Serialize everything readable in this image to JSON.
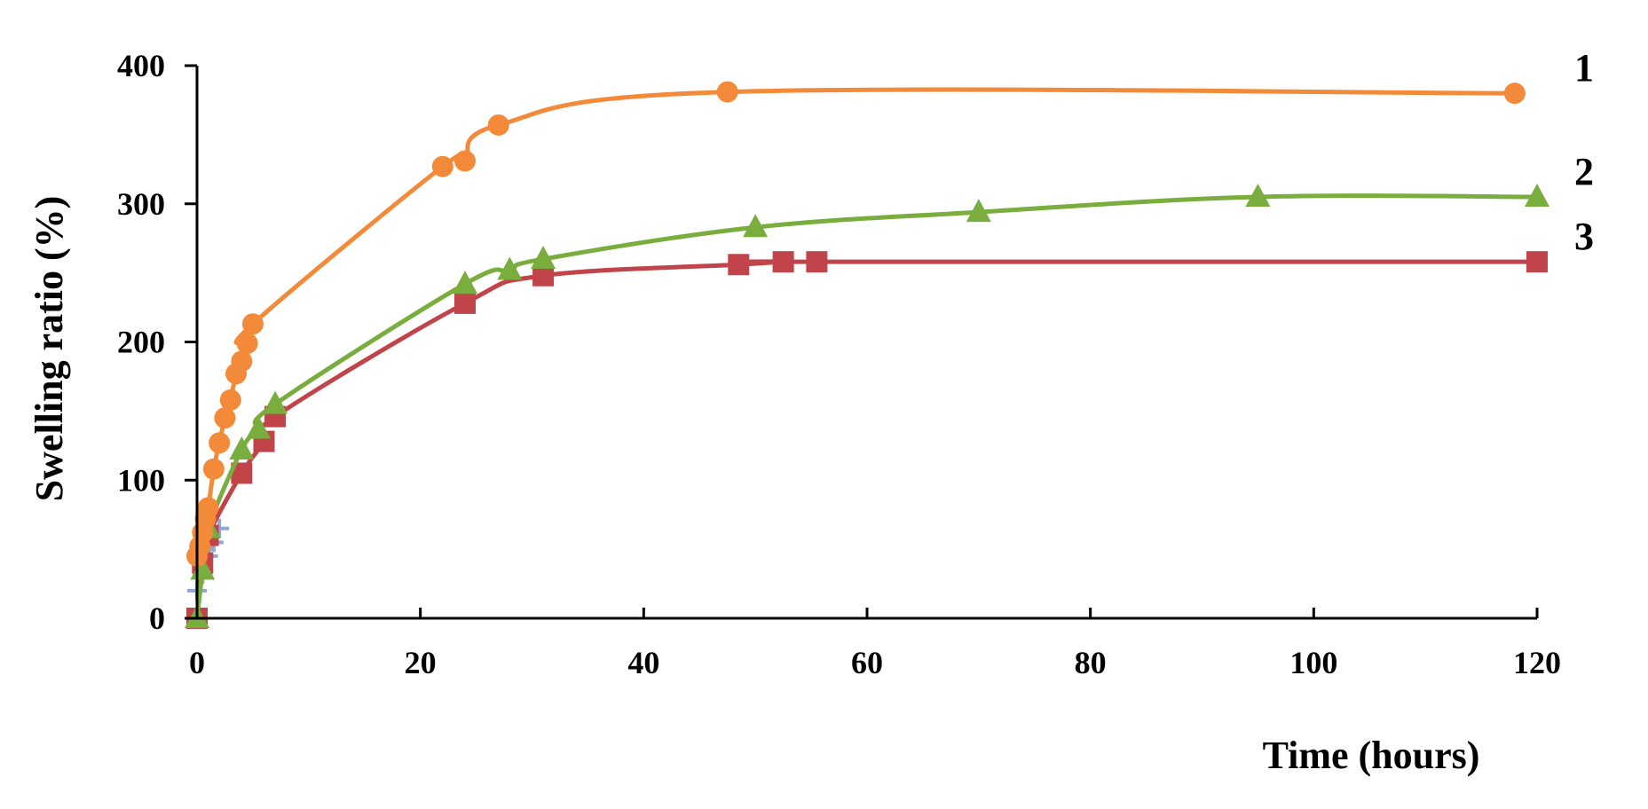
{
  "chart_data": {
    "type": "line",
    "title": "",
    "xlabel": "Time (hours)",
    "ylabel": "Swelling ratio (%)",
    "xlim": [
      0,
      120
    ],
    "ylim": [
      0,
      400
    ],
    "xticks": [
      0,
      20,
      40,
      60,
      80,
      100,
      120
    ],
    "yticks": [
      0,
      100,
      200,
      300,
      400
    ],
    "grid": false,
    "legend": "none",
    "series": [
      {
        "label": "1",
        "color": "#F28A3A",
        "marker": "circle",
        "x": [
          0,
          0.25,
          0.5,
          0.75,
          1,
          1.5,
          2,
          2.5,
          3,
          3.5,
          4,
          4.5,
          5,
          22,
          24,
          27,
          47.5,
          118
        ],
        "y": [
          45,
          52,
          62,
          72,
          80,
          108,
          127,
          145,
          158,
          177,
          186,
          199,
          213,
          327,
          331,
          357,
          381,
          380
        ]
      },
      {
        "label": "2",
        "color": "#79AD3E",
        "marker": "triangle",
        "x": [
          0,
          0.5,
          1,
          4,
          5.5,
          7,
          24,
          28,
          31,
          50,
          70,
          95,
          120
        ],
        "y": [
          0,
          35,
          65,
          122,
          137,
          155,
          242,
          252,
          260,
          283,
          294,
          305,
          305
        ]
      },
      {
        "label": "3",
        "color": "#C0444A",
        "marker": "square",
        "x": [
          0,
          0.5,
          1,
          4,
          6,
          7,
          24,
          31,
          48.5,
          52.5,
          55.5,
          120
        ],
        "y": [
          0,
          40,
          60,
          105,
          128,
          146,
          228,
          248,
          256,
          258,
          258,
          258
        ]
      },
      {
        "label": "",
        "color": "#8FA8D0",
        "marker": "plus",
        "x": [
          0,
          0.5,
          1,
          1.5,
          2
        ],
        "y": [
          20,
          32,
          45,
          55,
          65
        ]
      }
    ]
  }
}
